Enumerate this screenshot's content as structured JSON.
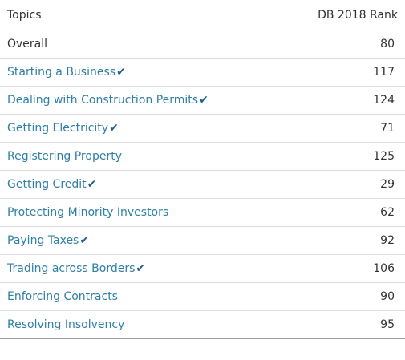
{
  "table": {
    "header": {
      "topics": "Topics",
      "rank": "DB 2018 Rank"
    },
    "check_glyph": "✔",
    "rows": [
      {
        "topic": "Overall",
        "rank": "80",
        "link": false,
        "check": false
      },
      {
        "topic": "Starting a Business",
        "rank": "117",
        "link": true,
        "check": true
      },
      {
        "topic": "Dealing with Construction Permits",
        "rank": "124",
        "link": true,
        "check": true
      },
      {
        "topic": "Getting Electricity",
        "rank": "71",
        "link": true,
        "check": true
      },
      {
        "topic": "Registering Property",
        "rank": "125",
        "link": true,
        "check": false
      },
      {
        "topic": "Getting Credit",
        "rank": "29",
        "link": true,
        "check": true
      },
      {
        "topic": "Protecting Minority Investors",
        "rank": "62",
        "link": true,
        "check": false
      },
      {
        "topic": "Paying Taxes",
        "rank": "92",
        "link": true,
        "check": true
      },
      {
        "topic": "Trading across Borders",
        "rank": "106",
        "link": true,
        "check": true
      },
      {
        "topic": "Enforcing Contracts",
        "rank": "90",
        "link": true,
        "check": false
      },
      {
        "topic": "Resolving Insolvency",
        "rank": "95",
        "link": true,
        "check": false
      }
    ]
  },
  "colors": {
    "link": "#2f7fa6",
    "check": "#1f5f8b",
    "text": "#333333",
    "row_divider": "#dcdcdc",
    "header_divider": "#9e9e9e"
  }
}
